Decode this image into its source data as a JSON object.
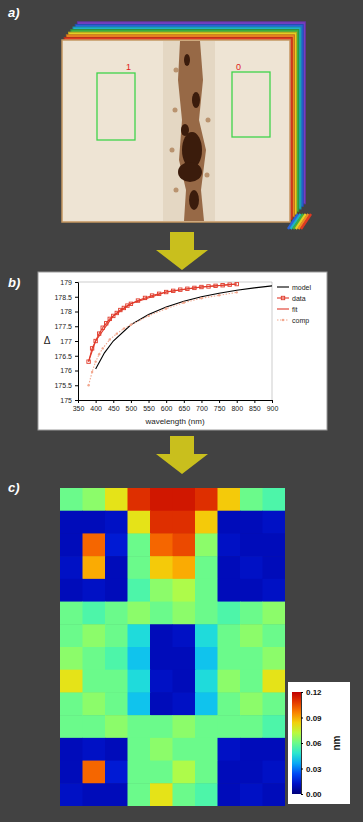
{
  "panels": [
    {
      "label": "a)",
      "regions": [
        {
          "label": "1"
        },
        {
          "label": "0"
        }
      ]
    },
    {
      "label": "b)"
    },
    {
      "label": "c)"
    }
  ],
  "chart_data": [
    {
      "type": "line",
      "x_label": "wavelength (nm)",
      "y_label": "Δ",
      "xlim": [
        350,
        900
      ],
      "xticks": [
        350,
        400,
        450,
        500,
        550,
        600,
        650,
        700,
        750,
        800,
        850,
        900
      ],
      "ylim": [
        175,
        179
      ],
      "yticks": [
        175,
        175.5,
        176,
        176.5,
        177,
        177.5,
        178,
        178.5,
        179
      ],
      "legend": "right",
      "series": [
        {
          "name": "model",
          "color": "#000000",
          "line_style": "solid",
          "x": [
            400,
            425,
            450,
            500,
            550,
            600,
            650,
            700,
            750,
            800,
            850,
            900
          ],
          "values": [
            176.05,
            176.6,
            177.0,
            177.55,
            177.9,
            178.15,
            178.35,
            178.5,
            178.62,
            178.72,
            178.8,
            178.87
          ]
        },
        {
          "name": "data",
          "color": "#e03a2a",
          "line_style": "solid",
          "marker": "square",
          "x": [
            380,
            390,
            400,
            410,
            420,
            430,
            440,
            450,
            460,
            470,
            480,
            490,
            500,
            520,
            540,
            560,
            580,
            600,
            620,
            640,
            660,
            680,
            700,
            720,
            740,
            760,
            780,
            800
          ],
          "values": [
            176.3,
            176.75,
            177.0,
            177.25,
            177.45,
            177.6,
            177.75,
            177.85,
            177.95,
            178.05,
            178.12,
            178.2,
            178.26,
            178.37,
            178.46,
            178.54,
            178.6,
            178.66,
            178.7,
            178.74,
            178.77,
            178.8,
            178.83,
            178.85,
            178.87,
            178.89,
            178.91,
            178.93
          ]
        },
        {
          "name": "fit",
          "color": "#e03a2a",
          "line_style": "solid",
          "x": [
            380,
            400,
            450,
            500,
            600,
            700,
            800
          ],
          "values": [
            176.3,
            177.0,
            177.85,
            178.26,
            178.66,
            178.83,
            178.93
          ]
        },
        {
          "name": "comp",
          "color": "#f2a78e",
          "line_style": "dotted",
          "marker": "circle",
          "x": [
            380,
            390,
            400,
            410,
            420,
            440,
            460,
            480,
            500,
            550,
            600,
            650,
            700,
            750,
            800
          ],
          "values": [
            175.5,
            175.95,
            176.3,
            176.55,
            176.75,
            177.05,
            177.25,
            177.42,
            177.55,
            177.85,
            178.1,
            178.3,
            178.45,
            178.55,
            178.65
          ]
        }
      ]
    },
    {
      "type": "heatmap",
      "cells": [
        [
          0.06,
          0.065,
          0.08,
          0.11,
          0.115,
          0.115,
          0.11,
          0.085,
          0.06,
          0.055
        ],
        [
          0.01,
          0.01,
          0.012,
          0.08,
          0.11,
          0.11,
          0.085,
          0.01,
          0.01,
          0.012
        ],
        [
          0.01,
          0.1,
          0.015,
          0.06,
          0.1,
          0.105,
          0.065,
          0.012,
          0.01,
          0.01
        ],
        [
          0.012,
          0.09,
          0.01,
          0.06,
          0.085,
          0.09,
          0.06,
          0.01,
          0.012,
          0.01
        ],
        [
          0.01,
          0.012,
          0.01,
          0.055,
          0.065,
          0.07,
          0.06,
          0.01,
          0.01,
          0.012
        ],
        [
          0.06,
          0.055,
          0.06,
          0.065,
          0.06,
          0.065,
          0.06,
          0.055,
          0.06,
          0.065
        ],
        [
          0.06,
          0.065,
          0.06,
          0.045,
          0.01,
          0.012,
          0.045,
          0.06,
          0.065,
          0.06
        ],
        [
          0.065,
          0.06,
          0.055,
          0.04,
          0.01,
          0.01,
          0.04,
          0.06,
          0.06,
          0.065
        ],
        [
          0.08,
          0.06,
          0.06,
          0.045,
          0.012,
          0.01,
          0.045,
          0.065,
          0.06,
          0.08
        ],
        [
          0.06,
          0.065,
          0.06,
          0.04,
          0.01,
          0.012,
          0.04,
          0.06,
          0.065,
          0.06
        ],
        [
          0.06,
          0.06,
          0.065,
          0.06,
          0.06,
          0.065,
          0.06,
          0.06,
          0.06,
          0.055
        ],
        [
          0.01,
          0.012,
          0.01,
          0.06,
          0.065,
          0.06,
          0.06,
          0.012,
          0.01,
          0.01
        ],
        [
          0.01,
          0.1,
          0.015,
          0.06,
          0.06,
          0.07,
          0.06,
          0.01,
          0.01,
          0.012
        ],
        [
          0.012,
          0.01,
          0.01,
          0.06,
          0.08,
          0.06,
          0.055,
          0.01,
          0.012,
          0.01
        ]
      ],
      "zlim": [
        0,
        0.12
      ],
      "zticks": [
        {
          "value": 0,
          "label": "0.00"
        },
        0.03,
        0.06,
        0.09,
        0.12
      ],
      "colorbar_label": "nm"
    }
  ]
}
